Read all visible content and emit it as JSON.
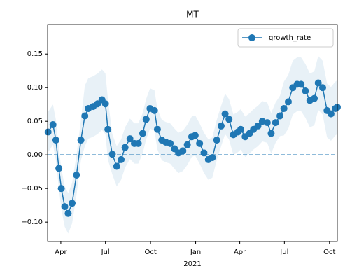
{
  "chart_data": {
    "type": "line",
    "title": "MT",
    "xlabel": "2021",
    "x": [
      "2020-03-06",
      "2020-03-16",
      "2020-03-22",
      "2020-03-28",
      "2020-04-02",
      "2020-04-09",
      "2020-04-16",
      "2020-04-24",
      "2020-05-03",
      "2020-05-12",
      "2020-05-20",
      "2020-05-27",
      "2020-06-06",
      "2020-06-15",
      "2020-06-24",
      "2020-07-01",
      "2020-07-06",
      "2020-07-15",
      "2020-07-24",
      "2020-08-02",
      "2020-08-10",
      "2020-08-20",
      "2020-08-29",
      "2020-09-06",
      "2020-09-15",
      "2020-09-22",
      "2020-09-30",
      "2020-10-09",
      "2020-10-15",
      "2020-10-24",
      "2020-11-01",
      "2020-11-10",
      "2020-11-19",
      "2020-11-27",
      "2020-12-06",
      "2020-12-15",
      "2020-12-24",
      "2020-12-31",
      "2021-01-09",
      "2021-01-18",
      "2021-01-27",
      "2021-02-04",
      "2021-02-13",
      "2021-02-22",
      "2021-03-02",
      "2021-03-10",
      "2021-03-19",
      "2021-03-28",
      "2021-04-03",
      "2021-04-12",
      "2021-04-21",
      "2021-04-29",
      "2021-05-08",
      "2021-05-17",
      "2021-05-27",
      "2021-06-04",
      "2021-06-13",
      "2021-06-22",
      "2021-06-30",
      "2021-07-09",
      "2021-07-18",
      "2021-07-27",
      "2021-08-04",
      "2021-08-13",
      "2021-08-22",
      "2021-08-31",
      "2021-09-08",
      "2021-09-17",
      "2021-09-26",
      "2021-10-04",
      "2021-10-13",
      "2021-10-17"
    ],
    "series": [
      {
        "name": "growth_rate",
        "color": "#1f77b4",
        "values": [
          0.034,
          0.045,
          0.022,
          -0.02,
          -0.05,
          -0.077,
          -0.087,
          -0.072,
          -0.03,
          0.022,
          0.058,
          0.069,
          0.072,
          0.076,
          0.082,
          0.076,
          0.038,
          0.001,
          -0.017,
          -0.007,
          0.011,
          0.024,
          0.017,
          0.017,
          0.032,
          0.053,
          0.069,
          0.066,
          0.038,
          0.022,
          0.019,
          0.017,
          0.009,
          0.003,
          0.006,
          0.015,
          0.027,
          0.029,
          0.017,
          0.003,
          -0.007,
          -0.004,
          0.022,
          0.043,
          0.061,
          0.053,
          0.03,
          0.034,
          0.038,
          0.027,
          0.032,
          0.038,
          0.043,
          0.05,
          0.048,
          0.032,
          0.048,
          0.058,
          0.069,
          0.079,
          0.1,
          0.105,
          0.105,
          0.095,
          0.081,
          0.084,
          0.107,
          0.1,
          0.066,
          0.061,
          0.069,
          0.071
        ],
        "upper": [
          0.064,
          0.075,
          0.052,
          0.01,
          -0.02,
          -0.047,
          -0.057,
          -0.042,
          0,
          0.052,
          0.103,
          0.114,
          0.117,
          0.121,
          0.127,
          0.121,
          0.083,
          0.031,
          0.013,
          0.023,
          0.041,
          0.054,
          0.047,
          0.047,
          0.062,
          0.083,
          0.099,
          0.096,
          0.068,
          0.052,
          0.049,
          0.047,
          0.039,
          0.033,
          0.036,
          0.045,
          0.057,
          0.059,
          0.047,
          0.033,
          0.023,
          0.026,
          0.052,
          0.073,
          0.091,
          0.083,
          0.06,
          0.064,
          0.068,
          0.057,
          0.062,
          0.068,
          0.073,
          0.08,
          0.078,
          0.062,
          0.078,
          0.088,
          0.109,
          0.119,
          0.14,
          0.145,
          0.145,
          0.135,
          0.121,
          0.124,
          0.147,
          0.14,
          0.106,
          0.101,
          0.109,
          0.111
        ],
        "lower": [
          0.004,
          0.015,
          -0.008,
          -0.05,
          -0.08,
          -0.107,
          -0.117,
          -0.102,
          -0.06,
          -0.008,
          0.013,
          0.024,
          0.027,
          0.031,
          0.037,
          0.031,
          -0.007,
          -0.029,
          -0.047,
          -0.037,
          -0.019,
          -0.006,
          -0.013,
          -0.013,
          0.002,
          0.023,
          0.039,
          0.036,
          0.008,
          -0.008,
          -0.011,
          -0.013,
          -0.021,
          -0.027,
          -0.024,
          -0.015,
          -0.003,
          -0.001,
          -0.013,
          -0.027,
          -0.037,
          -0.034,
          -0.008,
          0.013,
          0.031,
          0.023,
          0,
          0.004,
          0.008,
          -0.003,
          0.002,
          0.008,
          0.013,
          0.02,
          0.018,
          0.002,
          0.018,
          0.028,
          0.029,
          0.039,
          0.06,
          0.065,
          0.065,
          0.055,
          0.041,
          0.044,
          0.067,
          0.06,
          0.026,
          0.021,
          0.029,
          0.031
        ]
      }
    ],
    "hline": 0,
    "xlim": [
      "2020-03-05",
      "2021-10-17"
    ],
    "xticks": [
      {
        "value": "2020-04-01",
        "label": "Apr"
      },
      {
        "value": "2020-07-01",
        "label": "Jul"
      },
      {
        "value": "2020-10-01",
        "label": "Oct"
      },
      {
        "value": "2021-01-01",
        "label": "Jan"
      },
      {
        "value": "2021-04-01",
        "label": "Apr"
      },
      {
        "value": "2021-07-01",
        "label": "Jul"
      },
      {
        "value": "2021-10-01",
        "label": "Oct"
      }
    ],
    "ylim": [
      -0.129,
      0.194
    ],
    "yticks": [
      {
        "value": -0.1,
        "label": "−0.10"
      },
      {
        "value": -0.05,
        "label": "−0.05"
      },
      {
        "value": 0,
        "label": "0.00"
      },
      {
        "value": 0.05,
        "label": "0.05"
      },
      {
        "value": 0.1,
        "label": "0.10"
      },
      {
        "value": 0.15,
        "label": "0.15"
      }
    ],
    "grid": false,
    "legend": "upper right"
  }
}
